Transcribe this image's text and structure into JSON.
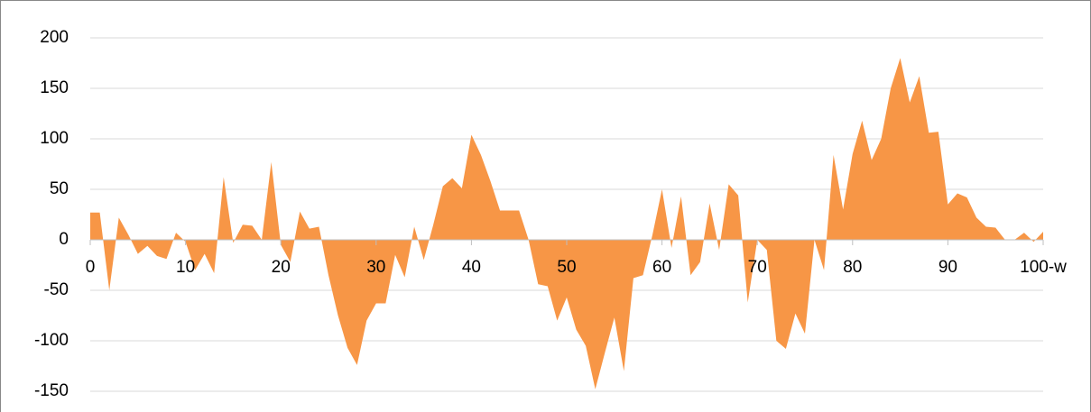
{
  "chart_data": {
    "type": "area",
    "color": "#f79646",
    "grid": true,
    "x": [
      0,
      1,
      2,
      3,
      4,
      5,
      6,
      7,
      8,
      9,
      10,
      11,
      12,
      13,
      14,
      15,
      16,
      17,
      18,
      19,
      20,
      21,
      22,
      23,
      24,
      25,
      26,
      27,
      28,
      29,
      30,
      31,
      32,
      33,
      34,
      35,
      36,
      37,
      38,
      39,
      40,
      41,
      42,
      43,
      44,
      45,
      46,
      47,
      48,
      49,
      50,
      51,
      52,
      53,
      54,
      55,
      56,
      57,
      58,
      59,
      60,
      61,
      62,
      63,
      64,
      65,
      66,
      67,
      68,
      69,
      70,
      71,
      72,
      73,
      74,
      75,
      76,
      77,
      78,
      79,
      80,
      81,
      82,
      83,
      84,
      85,
      86,
      87,
      88,
      89,
      90,
      91,
      92,
      93,
      94,
      95,
      96,
      97,
      98,
      99,
      100
    ],
    "values": [
      27,
      27,
      -50,
      22,
      5,
      -14,
      -6,
      -16,
      -19,
      7,
      -2,
      -30,
      -14,
      -33,
      62,
      -3,
      15,
      14,
      0,
      77,
      -5,
      -22,
      28,
      11,
      13,
      -35,
      -75,
      -107,
      -124,
      -80,
      -63,
      -63,
      -15,
      -37,
      13,
      -20,
      15,
      53,
      61,
      51,
      104,
      84,
      58,
      29,
      29,
      29,
      0,
      -44,
      -46,
      -80,
      -57,
      -89,
      -105,
      -148,
      -112,
      -77,
      -130,
      -38,
      -35,
      5,
      50,
      -8,
      43,
      -35,
      -22,
      36,
      -10,
      55,
      44,
      -62,
      0,
      -10,
      -100,
      -108,
      -73,
      -93,
      0,
      -30,
      84,
      30,
      85,
      118,
      79,
      100,
      150,
      180,
      136,
      162,
      106,
      107,
      35,
      46,
      42,
      22,
      13,
      12,
      0,
      0,
      7,
      -2,
      8
    ],
    "xlim": [
      0,
      100
    ],
    "xticks": [
      0,
      10,
      20,
      30,
      40,
      50,
      60,
      70,
      80,
      90,
      {
        "value": 100,
        "label": "100-w"
      }
    ],
    "ylim": [
      -150,
      200
    ],
    "yticks": [
      -150,
      -100,
      -50,
      0,
      50,
      100,
      150,
      200
    ]
  }
}
